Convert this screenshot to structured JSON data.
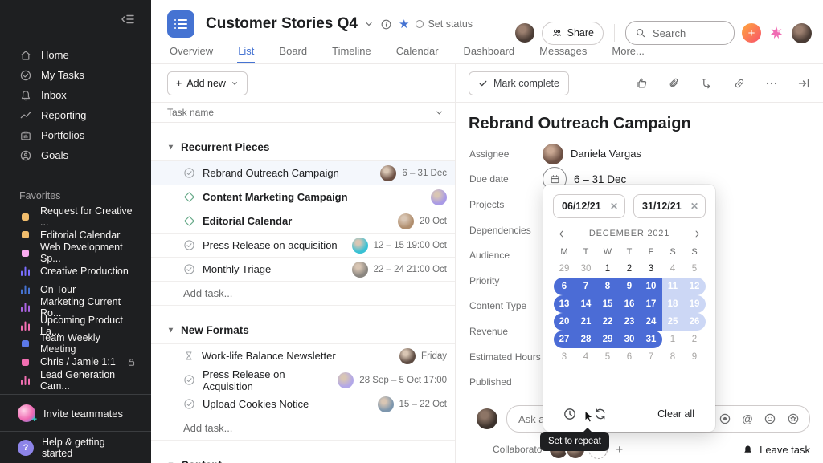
{
  "sidebar": {
    "nav": [
      {
        "label": "Home",
        "icon": "home"
      },
      {
        "label": "My Tasks",
        "icon": "check-circle"
      },
      {
        "label": "Inbox",
        "icon": "bell"
      },
      {
        "label": "Reporting",
        "icon": "chart"
      },
      {
        "label": "Portfolios",
        "icon": "folder"
      },
      {
        "label": "Goals",
        "icon": "goal"
      }
    ],
    "favorites_title": "Favorites",
    "favorites": [
      {
        "label": "Request for Creative ...",
        "icon": "square",
        "color": "#f1bd6c"
      },
      {
        "label": "Editorial Calendar",
        "icon": "square",
        "color": "#f1bd6c"
      },
      {
        "label": "Web Development Sp...",
        "icon": "square",
        "color": "#f9aaef"
      },
      {
        "label": "Creative Production",
        "icon": "bars",
        "color": "#796eff"
      },
      {
        "label": "On Tour",
        "icon": "bars",
        "color": "#4573d2"
      },
      {
        "label": "Marketing Current Ro...",
        "icon": "bars",
        "color": "#a962e0"
      },
      {
        "label": "Upcoming Product La...",
        "icon": "bars",
        "color": "#f26fb2"
      },
      {
        "label": "Team Weekly Meeting",
        "icon": "square",
        "color": "#5b78e8"
      },
      {
        "label": "Chris / Jamie 1:1",
        "icon": "square",
        "color": "#f26fb2",
        "locked": true
      },
      {
        "label": "Lead Generation Cam...",
        "icon": "bars",
        "color": "#f26fb2"
      }
    ],
    "invite": "Invite teammates",
    "help": "Help & getting started"
  },
  "topbar": {
    "project_title": "Customer Stories Q4",
    "set_status": "Set status",
    "share": "Share",
    "search_placeholder": "Search",
    "tabs": [
      {
        "label": "Overview",
        "active": false
      },
      {
        "label": "List",
        "active": true
      },
      {
        "label": "Board",
        "active": false
      },
      {
        "label": "Timeline",
        "active": false
      },
      {
        "label": "Calendar",
        "active": false
      },
      {
        "label": "Dashboard",
        "active": false
      },
      {
        "label": "Messages",
        "active": false
      },
      {
        "label": "More...",
        "active": false
      }
    ]
  },
  "list_panel": {
    "add_new": "Add new",
    "column_header": "Task name",
    "sections": [
      {
        "title": "Recurrent Pieces",
        "add_task": "Add task...",
        "tasks": [
          {
            "name": "Rebrand Outreach Campaign",
            "icon": "check",
            "date": "6 – 31 Dec",
            "avatar": "#6b4f43",
            "selected": true
          },
          {
            "name": "Content Marketing Campaign",
            "icon": "diamond",
            "date": "",
            "avatar": "#a99ae6",
            "bold": true
          },
          {
            "name": "Editorial Calendar",
            "icon": "diamond",
            "date": "20 Oct",
            "avatar": "#b08e6e",
            "bold": true
          },
          {
            "name": "Press Release on acquisition",
            "icon": "check",
            "date": "12 – 15 19:00 Oct",
            "avatar": "#39c1d4"
          },
          {
            "name": "Monthly Triage",
            "icon": "check",
            "date": "22 – 24 21:00 Oct",
            "avatar": "#8a8680"
          }
        ]
      },
      {
        "title": "New Formats",
        "add_task": "Add task...",
        "tasks": [
          {
            "name": "Work-life Balance Newsletter",
            "icon": "hourglass",
            "date": "Friday",
            "avatar": "#5d4b42"
          },
          {
            "name": "Press Release on Acquisition",
            "icon": "check",
            "date": "28 Sep – 5 Oct 17:00",
            "avatar": "#b3a8e8"
          },
          {
            "name": "Upload Cookies Notice",
            "icon": "check",
            "date": "15 – 22 Oct",
            "avatar": "#7d96ad"
          }
        ]
      },
      {
        "title": "Content",
        "add_task": "",
        "tasks": []
      }
    ]
  },
  "detail_panel": {
    "mark_complete": "Mark complete",
    "title": "Rebrand Outreach Campaign",
    "fields": [
      {
        "label": "Assignee",
        "type": "assignee",
        "value": "Daniela Vargas"
      },
      {
        "label": "Due date",
        "type": "duedate",
        "value": "6 – 31 Dec"
      },
      {
        "label": "Projects",
        "type": "empty"
      },
      {
        "label": "Dependencies",
        "type": "empty"
      },
      {
        "label": "Audience",
        "type": "empty"
      },
      {
        "label": "Priority",
        "type": "empty"
      },
      {
        "label": "Content Type",
        "type": "empty"
      },
      {
        "label": "Revenue",
        "type": "empty"
      },
      {
        "label": "Estimated Hours",
        "type": "empty"
      },
      {
        "label": "Published",
        "type": "empty"
      }
    ],
    "comment_placeholder": "Ask a que",
    "collaborators_label": "Collaborato",
    "leave_task": "Leave task"
  },
  "datepicker": {
    "start_date": "06/12/21",
    "end_date": "31/12/21",
    "month": "DECEMBER 2021",
    "weekdays": [
      "M",
      "T",
      "W",
      "T",
      "F",
      "S",
      "S"
    ],
    "weeks": [
      [
        {
          "d": "29",
          "s": "muted"
        },
        {
          "d": "30",
          "s": "muted"
        },
        {
          "d": "1",
          "s": ""
        },
        {
          "d": "2",
          "s": ""
        },
        {
          "d": "3",
          "s": ""
        },
        {
          "d": "4",
          "s": "muted"
        },
        {
          "d": "5",
          "s": "muted"
        }
      ],
      [
        {
          "d": "6",
          "s": "sel start"
        },
        {
          "d": "7",
          "s": "sel"
        },
        {
          "d": "8",
          "s": "sel"
        },
        {
          "d": "9",
          "s": "sel"
        },
        {
          "d": "10",
          "s": "sel"
        },
        {
          "d": "11",
          "s": "light"
        },
        {
          "d": "12",
          "s": "light end"
        }
      ],
      [
        {
          "d": "13",
          "s": "sel start"
        },
        {
          "d": "14",
          "s": "sel"
        },
        {
          "d": "15",
          "s": "sel"
        },
        {
          "d": "16",
          "s": "sel"
        },
        {
          "d": "17",
          "s": "sel"
        },
        {
          "d": "18",
          "s": "light"
        },
        {
          "d": "19",
          "s": "light end"
        }
      ],
      [
        {
          "d": "20",
          "s": "sel start"
        },
        {
          "d": "21",
          "s": "sel"
        },
        {
          "d": "22",
          "s": "sel"
        },
        {
          "d": "23",
          "s": "sel"
        },
        {
          "d": "24",
          "s": "sel"
        },
        {
          "d": "25",
          "s": "light"
        },
        {
          "d": "26",
          "s": "light end"
        }
      ],
      [
        {
          "d": "27",
          "s": "sel start"
        },
        {
          "d": "28",
          "s": "sel"
        },
        {
          "d": "29",
          "s": "sel"
        },
        {
          "d": "30",
          "s": "sel"
        },
        {
          "d": "31",
          "s": "sel end"
        },
        {
          "d": "1",
          "s": "muted"
        },
        {
          "d": "2",
          "s": "muted"
        }
      ],
      [
        {
          "d": "3",
          "s": "muted"
        },
        {
          "d": "4",
          "s": "muted"
        },
        {
          "d": "5",
          "s": "muted"
        },
        {
          "d": "6",
          "s": "muted"
        },
        {
          "d": "7",
          "s": "muted"
        },
        {
          "d": "8",
          "s": "muted"
        },
        {
          "d": "9",
          "s": "muted"
        }
      ]
    ],
    "clear_all": "Clear all",
    "tooltip": "Set to repeat"
  },
  "colors": {
    "accent_blue": "#4573d2",
    "range_solid": "#4b6cd6",
    "range_weekend": "#ccd7f5",
    "sidebar_bg": "#1e1f21"
  }
}
